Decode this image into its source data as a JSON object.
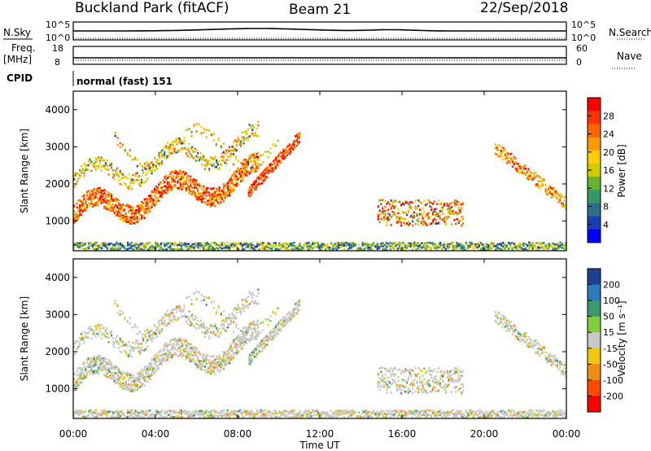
{
  "header": {
    "site_title": "Buckland Park (fitACF)",
    "beam": "Beam 21",
    "date": "22/Sep/2018"
  },
  "top_panels": {
    "nsky_label": "N.Sky",
    "nsky_ticks": [
      "10^5",
      "10^0"
    ],
    "nsearch_label": "N.Search",
    "nsearch_ticks": [
      "10^5",
      "10^0"
    ],
    "freq_label": "Freq.",
    "freq_unit": "[MHz]",
    "freq_ticks": [
      "18",
      "8"
    ],
    "nave_label": "Nave",
    "nave_ticks": [
      "60",
      "0"
    ],
    "cpid_label": "CPID",
    "cpid_value": "normal (fast) 151"
  },
  "chart_data": [
    {
      "type": "heatmap",
      "panel": "power",
      "ylabel": "Slant Range [km]",
      "y_ticks": [
        "1000",
        "2000",
        "3000",
        "4000"
      ],
      "ylim": [
        200,
        4500
      ],
      "colorbar_label": "Power [dB]",
      "colorbar_ticks": [
        "28",
        "24",
        "20",
        "16",
        "12",
        "8",
        "4"
      ],
      "colorbar_colors": [
        "#ff0000",
        "#ff3300",
        "#ff6600",
        "#ff9900",
        "#ffcc00",
        "#cccc00",
        "#66b233",
        "#339966",
        "#2d6e8a",
        "#1a3fb3",
        "#0000ff"
      ]
    },
    {
      "type": "heatmap",
      "panel": "velocity",
      "ylabel": "Slant Range [km]",
      "y_ticks": [
        "1000",
        "2000",
        "3000",
        "4000"
      ],
      "ylim": [
        200,
        4500
      ],
      "colorbar_label": "Velocity [m s⁻¹]",
      "colorbar_ticks": [
        "200",
        "100",
        "50",
        "15",
        "-15",
        "-50",
        "-100",
        "-200"
      ],
      "colorbar_colors": [
        "#1f3f8f",
        "#2d7ab8",
        "#3a9a6b",
        "#7fd03a",
        "#c8c8c8",
        "#f0c814",
        "#f08c14",
        "#ff4a00",
        "#ff0000"
      ]
    }
  ],
  "x_axis": {
    "label": "Time UT",
    "ticks": [
      "00:00",
      "04:00",
      "08:00",
      "12:00",
      "16:00",
      "20:00",
      "00:00"
    ]
  }
}
